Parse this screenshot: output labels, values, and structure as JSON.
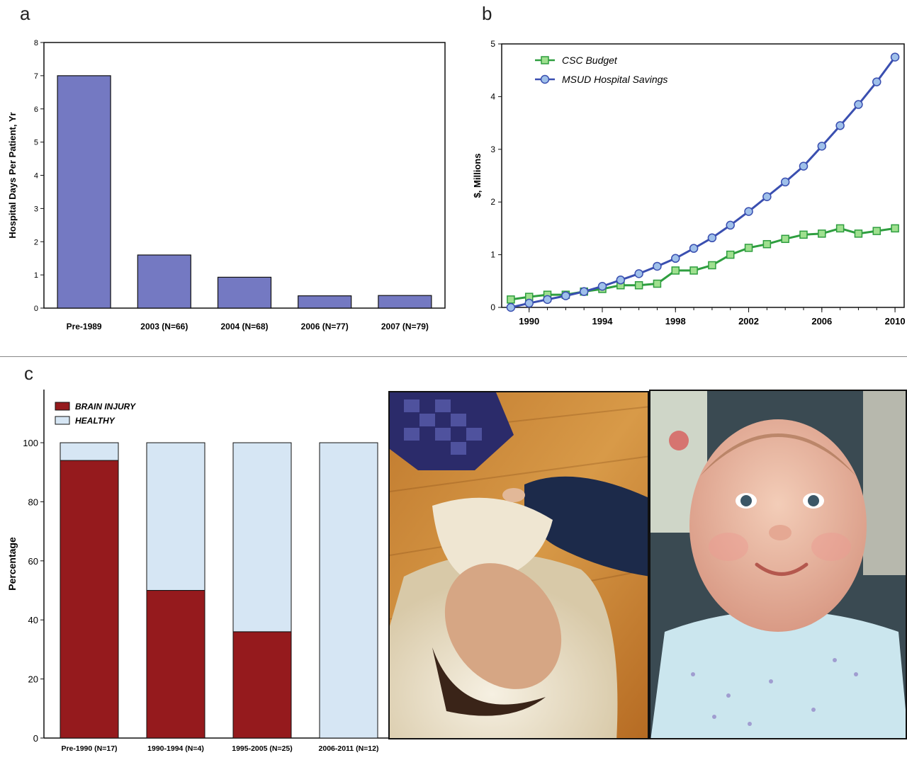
{
  "panels": {
    "a": "a",
    "b": "b",
    "c": "c"
  },
  "chart_data": [
    {
      "type": "bar",
      "panel": "a",
      "ylabel": "Hospital Days Per Patient, Yr",
      "xlabel": "",
      "ylim": [
        0,
        8
      ],
      "yticks": [
        "0",
        "1",
        "2",
        "3",
        "4",
        "5",
        "6",
        "7",
        "8"
      ],
      "categories": [
        "Pre-1989",
        "2003 (N=66)",
        "2004 (N=68)",
        "2006 (N=77)",
        "2007 (N=79)"
      ],
      "values": [
        7.0,
        1.6,
        0.93,
        0.37,
        0.38
      ],
      "bar_color": "#7479c2",
      "grid": false
    },
    {
      "type": "line",
      "panel": "b",
      "ylabel": "$, Millions",
      "xlabel": "",
      "ylim": [
        0,
        5
      ],
      "yticks": [
        "0",
        "1",
        "2",
        "3",
        "4",
        "5"
      ],
      "xlim": [
        1988.5,
        2010.5
      ],
      "xticks": [
        "1990",
        "1994",
        "1998",
        "2002",
        "2006",
        "2010"
      ],
      "x": [
        1989,
        1990,
        1991,
        1992,
        1993,
        1994,
        1995,
        1996,
        1997,
        1998,
        1999,
        2000,
        2001,
        2002,
        2003,
        2004,
        2005,
        2006,
        2007,
        2008,
        2009,
        2010
      ],
      "series": [
        {
          "name": "CSC Budget",
          "color": "#2e9e3f",
          "fill": "#9fe08f",
          "marker": "square",
          "values": [
            0.15,
            0.2,
            0.24,
            0.24,
            0.3,
            0.35,
            0.42,
            0.42,
            0.45,
            0.7,
            0.7,
            0.8,
            1.0,
            1.13,
            1.2,
            1.3,
            1.38,
            1.4,
            1.5,
            1.4,
            1.45,
            1.5
          ]
        },
        {
          "name": "MSUD Hospital Savings",
          "color": "#3a4fb0",
          "fill": "#9fc0ea",
          "marker": "circle",
          "values": [
            0.0,
            0.08,
            0.15,
            0.22,
            0.3,
            0.4,
            0.52,
            0.64,
            0.78,
            0.93,
            1.12,
            1.32,
            1.56,
            1.82,
            2.1,
            2.38,
            2.68,
            3.06,
            3.45,
            3.85,
            4.28,
            4.75
          ]
        }
      ],
      "legend": "top-left",
      "grid": false
    },
    {
      "type": "bar",
      "stacked": true,
      "panel": "c",
      "ylabel": "Percentage",
      "xlabel": "",
      "ylim": [
        0,
        100
      ],
      "yticks": [
        "0",
        "20",
        "40",
        "60",
        "80",
        "100"
      ],
      "categories": [
        "Pre-1990 (N=17)",
        "1990-1994 (N=4)",
        "1995-2005 (N=25)",
        "2006-2011 (N=12)"
      ],
      "series": [
        {
          "name": "BRAIN INJURY",
          "color": "#951a1d",
          "values": [
            94,
            50,
            36,
            0
          ]
        },
        {
          "name": "HEALTHY",
          "color": "#d6e6f4",
          "values": [
            6,
            50,
            64,
            100
          ]
        }
      ],
      "legend": "top-left",
      "grid": false
    }
  ]
}
